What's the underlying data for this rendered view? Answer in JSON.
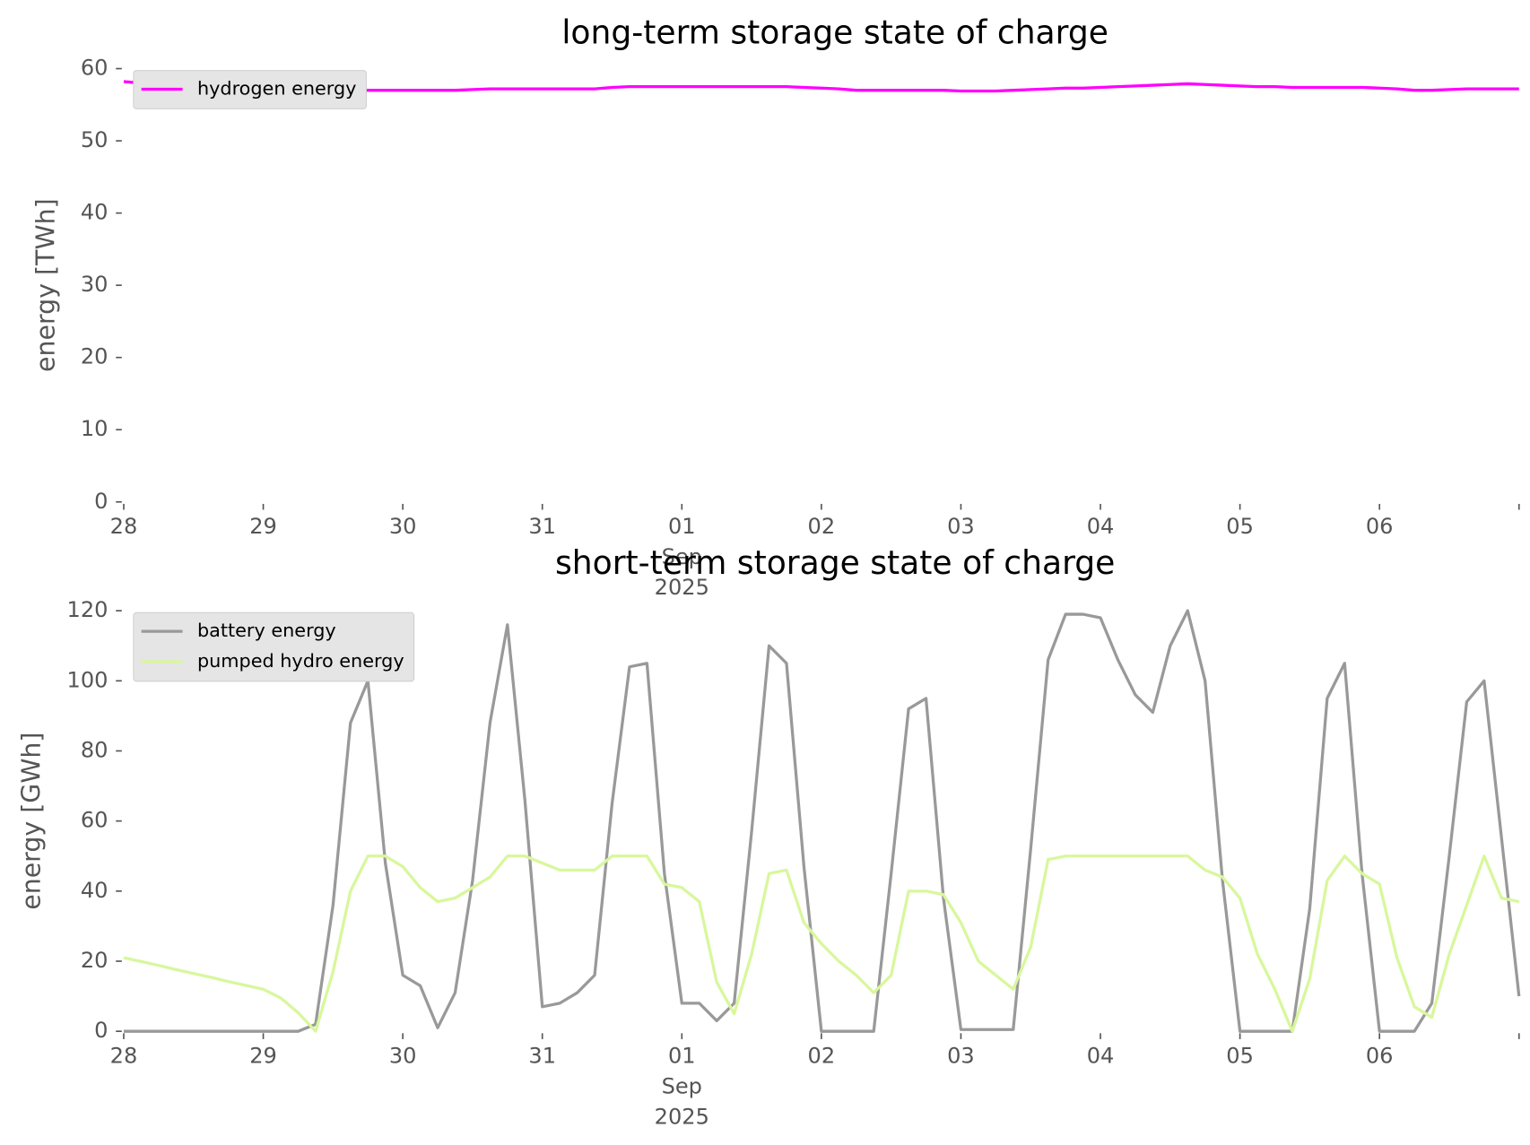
{
  "chart_data": [
    {
      "type": "line",
      "title": "long-term storage state of charge",
      "ylabel": "energy [TWh]",
      "legend": "upper left",
      "x": [
        "2025-08-28T00:00",
        "2025-08-28T03:00",
        "2025-08-28T06:00",
        "2025-08-28T09:00",
        "2025-08-28T12:00",
        "2025-08-28T15:00",
        "2025-08-28T18:00",
        "2025-08-28T21:00",
        "2025-08-29T00:00",
        "2025-08-29T03:00",
        "2025-08-29T06:00",
        "2025-08-29T09:00",
        "2025-08-29T12:00",
        "2025-08-29T15:00",
        "2025-08-29T18:00",
        "2025-08-29T21:00",
        "2025-08-30T00:00",
        "2025-08-30T03:00",
        "2025-08-30T06:00",
        "2025-08-30T09:00",
        "2025-08-30T12:00",
        "2025-08-30T15:00",
        "2025-08-30T18:00",
        "2025-08-30T21:00",
        "2025-08-31T00:00",
        "2025-08-31T03:00",
        "2025-08-31T06:00",
        "2025-08-31T09:00",
        "2025-08-31T12:00",
        "2025-08-31T15:00",
        "2025-08-31T18:00",
        "2025-08-31T21:00",
        "2025-09-01T00:00",
        "2025-09-01T03:00",
        "2025-09-01T06:00",
        "2025-09-01T09:00",
        "2025-09-01T12:00",
        "2025-09-01T15:00",
        "2025-09-01T18:00",
        "2025-09-01T21:00",
        "2025-09-02T00:00",
        "2025-09-02T03:00",
        "2025-09-02T06:00",
        "2025-09-02T09:00",
        "2025-09-02T12:00",
        "2025-09-02T15:00",
        "2025-09-02T18:00",
        "2025-09-02T21:00",
        "2025-09-03T00:00",
        "2025-09-03T03:00",
        "2025-09-03T06:00",
        "2025-09-03T09:00",
        "2025-09-03T12:00",
        "2025-09-03T15:00",
        "2025-09-03T18:00",
        "2025-09-03T21:00",
        "2025-09-04T00:00",
        "2025-09-04T03:00",
        "2025-09-04T06:00",
        "2025-09-04T09:00",
        "2025-09-04T12:00",
        "2025-09-04T15:00",
        "2025-09-04T18:00",
        "2025-09-04T21:00",
        "2025-09-05T00:00",
        "2025-09-05T03:00",
        "2025-09-05T06:00",
        "2025-09-05T09:00",
        "2025-09-05T12:00",
        "2025-09-05T15:00",
        "2025-09-05T18:00",
        "2025-09-05T21:00",
        "2025-09-06T00:00",
        "2025-09-06T03:00",
        "2025-09-06T06:00",
        "2025-09-06T09:00",
        "2025-09-06T12:00",
        "2025-09-06T15:00",
        "2025-09-06T18:00",
        "2025-09-06T21:00",
        "2025-09-07T00:00"
      ],
      "series": [
        {
          "name": "hydrogen energy",
          "color": "#ff00ff",
          "values": [
            58.2,
            58.0,
            57.8,
            57.6,
            57.4,
            57.3,
            57.2,
            57.1,
            57.0,
            57.0,
            57.0,
            57.0,
            57.0,
            57.0,
            57.0,
            57.0,
            57.0,
            57.0,
            57.0,
            57.0,
            57.1,
            57.2,
            57.2,
            57.2,
            57.2,
            57.2,
            57.2,
            57.2,
            57.4,
            57.5,
            57.5,
            57.5,
            57.5,
            57.5,
            57.5,
            57.5,
            57.5,
            57.5,
            57.5,
            57.4,
            57.3,
            57.2,
            57.0,
            57.0,
            57.0,
            57.0,
            57.0,
            57.0,
            56.9,
            56.9,
            56.9,
            57.0,
            57.1,
            57.2,
            57.3,
            57.3,
            57.4,
            57.5,
            57.6,
            57.7,
            57.8,
            57.9,
            57.8,
            57.7,
            57.6,
            57.5,
            57.5,
            57.4,
            57.4,
            57.4,
            57.4,
            57.4,
            57.3,
            57.2,
            57.0,
            57.0,
            57.1,
            57.2,
            57.2,
            57.2,
            57.2
          ]
        }
      ],
      "xlim": [
        "2025-08-28T00:00",
        "2025-09-07T00:00"
      ],
      "xticks": [
        {
          "value": "2025-08-28T00:00",
          "label": "28"
        },
        {
          "value": "2025-08-29T00:00",
          "label": "29"
        },
        {
          "value": "2025-08-30T00:00",
          "label": "30"
        },
        {
          "value": "2025-08-31T00:00",
          "label": "31"
        },
        {
          "value": "2025-09-01T00:00",
          "label": "01\nSep\n2025"
        },
        {
          "value": "2025-09-02T00:00",
          "label": "02"
        },
        {
          "value": "2025-09-03T00:00",
          "label": "03"
        },
        {
          "value": "2025-09-04T00:00",
          "label": "04"
        },
        {
          "value": "2025-09-05T00:00",
          "label": "05"
        },
        {
          "value": "2025-09-06T00:00",
          "label": "06"
        },
        {
          "value": "2025-09-07T00:00",
          "label": null
        }
      ],
      "ylim": [
        0,
        60
      ],
      "yticks": [
        0,
        10,
        20,
        30,
        40,
        50,
        60
      ]
    },
    {
      "type": "line",
      "title": "short-term storage state of charge",
      "ylabel": "energy [GWh]",
      "legend": "upper left",
      "x": [
        "2025-08-28T00:00",
        "2025-08-28T03:00",
        "2025-08-28T06:00",
        "2025-08-28T09:00",
        "2025-08-28T12:00",
        "2025-08-28T15:00",
        "2025-08-28T18:00",
        "2025-08-28T21:00",
        "2025-08-29T00:00",
        "2025-08-29T03:00",
        "2025-08-29T06:00",
        "2025-08-29T09:00",
        "2025-08-29T12:00",
        "2025-08-29T15:00",
        "2025-08-29T18:00",
        "2025-08-29T21:00",
        "2025-08-30T00:00",
        "2025-08-30T03:00",
        "2025-08-30T06:00",
        "2025-08-30T09:00",
        "2025-08-30T12:00",
        "2025-08-30T15:00",
        "2025-08-30T18:00",
        "2025-08-30T21:00",
        "2025-08-31T00:00",
        "2025-08-31T03:00",
        "2025-08-31T06:00",
        "2025-08-31T09:00",
        "2025-08-31T12:00",
        "2025-08-31T15:00",
        "2025-08-31T18:00",
        "2025-08-31T21:00",
        "2025-09-01T00:00",
        "2025-09-01T03:00",
        "2025-09-01T06:00",
        "2025-09-01T09:00",
        "2025-09-01T12:00",
        "2025-09-01T15:00",
        "2025-09-01T18:00",
        "2025-09-01T21:00",
        "2025-09-02T00:00",
        "2025-09-02T03:00",
        "2025-09-02T06:00",
        "2025-09-02T09:00",
        "2025-09-02T12:00",
        "2025-09-02T15:00",
        "2025-09-02T18:00",
        "2025-09-02T21:00",
        "2025-09-03T00:00",
        "2025-09-03T03:00",
        "2025-09-03T06:00",
        "2025-09-03T09:00",
        "2025-09-03T12:00",
        "2025-09-03T15:00",
        "2025-09-03T18:00",
        "2025-09-03T21:00",
        "2025-09-04T00:00",
        "2025-09-04T03:00",
        "2025-09-04T06:00",
        "2025-09-04T09:00",
        "2025-09-04T12:00",
        "2025-09-04T15:00",
        "2025-09-04T18:00",
        "2025-09-04T21:00",
        "2025-09-05T00:00",
        "2025-09-05T03:00",
        "2025-09-05T06:00",
        "2025-09-05T09:00",
        "2025-09-05T12:00",
        "2025-09-05T15:00",
        "2025-09-05T18:00",
        "2025-09-05T21:00",
        "2025-09-06T00:00",
        "2025-09-06T03:00",
        "2025-09-06T06:00",
        "2025-09-06T09:00",
        "2025-09-06T12:00",
        "2025-09-06T15:00",
        "2025-09-06T18:00",
        "2025-09-06T21:00",
        "2025-09-07T00:00"
      ],
      "series": [
        {
          "name": "battery energy",
          "color": "#999999",
          "values": [
            0,
            0,
            0,
            0,
            0,
            0,
            0,
            0,
            0,
            0,
            0,
            2,
            36,
            88,
            100,
            48,
            16,
            13,
            1,
            11,
            43,
            88,
            116,
            66,
            7,
            8,
            11,
            16,
            65,
            104,
            105,
            45,
            8,
            8,
            3,
            8,
            57,
            110,
            105,
            47,
            0,
            0,
            0,
            0,
            45,
            92,
            95,
            38,
            0.5,
            0.5,
            0.5,
            0.5,
            52,
            106,
            119,
            119,
            118,
            106,
            96,
            91,
            110,
            120,
            100,
            43,
            0,
            0,
            0,
            0,
            35,
            95,
            105,
            45,
            0,
            0,
            0,
            8,
            50,
            94,
            100,
            55,
            10
          ]
        },
        {
          "name": "pumped hydro energy",
          "color": "#d8f79c",
          "values": [
            21,
            19.9,
            18.8,
            17.6,
            16.5,
            15.4,
            14.2,
            13.1,
            12,
            9.5,
            5.3,
            0,
            17,
            40,
            50,
            50,
            47,
            41,
            37,
            38,
            41,
            44,
            50,
            50,
            48,
            46,
            46,
            46,
            50,
            50,
            50,
            42,
            41,
            37,
            14,
            5,
            22,
            45,
            46,
            31,
            25,
            20,
            16,
            11,
            16,
            40,
            40,
            39,
            31,
            20,
            16,
            12,
            24,
            49,
            50,
            50,
            50,
            50,
            50,
            50,
            50,
            50,
            46,
            44,
            38,
            22,
            12,
            0,
            15,
            43,
            50,
            45,
            42,
            21,
            7,
            4,
            22,
            36,
            50,
            38,
            37
          ]
        }
      ],
      "xlim": [
        "2025-08-28T00:00",
        "2025-09-07T00:00"
      ],
      "xticks": [
        {
          "value": "2025-08-28T00:00",
          "label": "28"
        },
        {
          "value": "2025-08-29T00:00",
          "label": "29"
        },
        {
          "value": "2025-08-30T00:00",
          "label": "30"
        },
        {
          "value": "2025-08-31T00:00",
          "label": "31"
        },
        {
          "value": "2025-09-01T00:00",
          "label": "01\nSep\n2025"
        },
        {
          "value": "2025-09-02T00:00",
          "label": "02"
        },
        {
          "value": "2025-09-03T00:00",
          "label": "03"
        },
        {
          "value": "2025-09-04T00:00",
          "label": "04"
        },
        {
          "value": "2025-09-05T00:00",
          "label": "05"
        },
        {
          "value": "2025-09-06T00:00",
          "label": "06"
        },
        {
          "value": "2025-09-07T00:00",
          "label": null
        }
      ],
      "ylim": [
        0,
        120
      ],
      "yticks": [
        0,
        20,
        40,
        60,
        80,
        100,
        120
      ]
    }
  ]
}
